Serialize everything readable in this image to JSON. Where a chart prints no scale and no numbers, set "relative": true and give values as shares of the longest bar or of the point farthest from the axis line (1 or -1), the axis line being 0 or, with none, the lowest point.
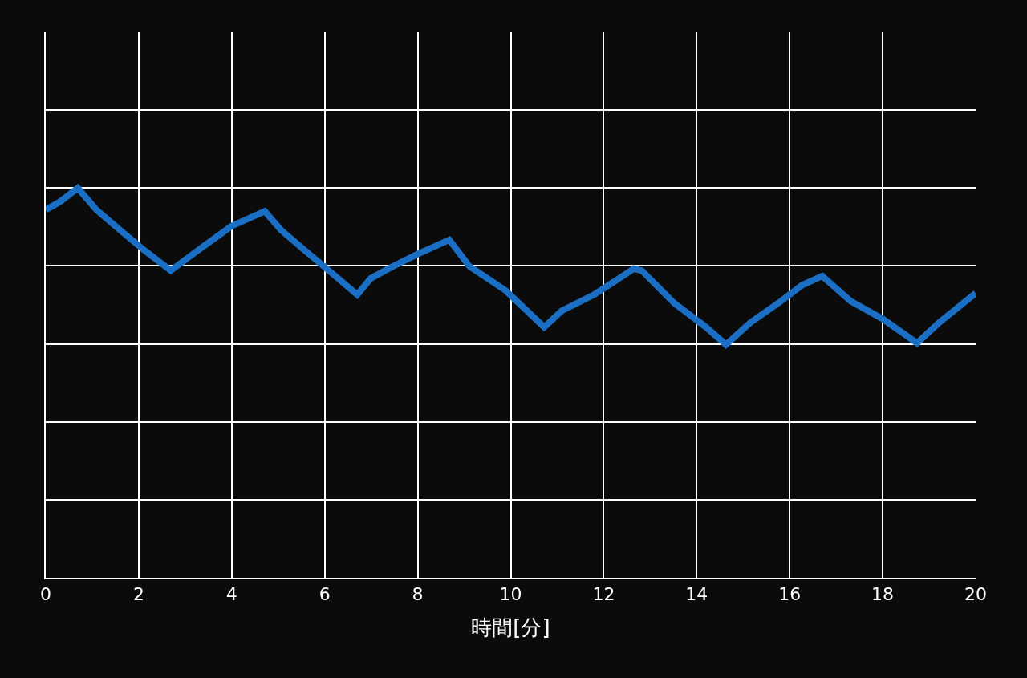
{
  "chart_data": {
    "type": "line",
    "xlabel": "時間[分]",
    "relative": true,
    "xlim": [
      0,
      20
    ],
    "xticks": [
      0,
      2,
      4,
      6,
      8,
      10,
      12,
      14,
      16,
      18,
      20
    ],
    "grid": true,
    "tick_labels": "x",
    "marker": "none",
    "line_style": "solid",
    "series": [
      {
        "color": "#1a6fc4",
        "x": [
          0,
          0.31,
          0.69,
          1.09,
          1.6,
          2.12,
          2.69,
          3.16,
          3.99,
          4.71,
          5.06,
          5.57,
          6.09,
          6.7,
          6.99,
          7.47,
          7.99,
          8.68,
          9.11,
          9.89,
          10.72,
          11.1,
          11.79,
          12.65,
          12.82,
          13.51,
          14.2,
          14.63,
          15.15,
          15.76,
          16.27,
          16.7,
          17.31,
          18.0,
          18.74,
          19.21,
          20.0
        ],
        "values": [
          0.944,
          0.965,
          1.0,
          0.944,
          0.892,
          0.84,
          0.788,
          0.83,
          0.902,
          0.94,
          0.892,
          0.84,
          0.788,
          0.726,
          0.768,
          0.799,
          0.83,
          0.867,
          0.799,
          0.737,
          0.643,
          0.685,
          0.726,
          0.793,
          0.788,
          0.705,
          0.643,
          0.598,
          0.654,
          0.705,
          0.751,
          0.774,
          0.71,
          0.664,
          0.602,
          0.654,
          0.73
        ]
      }
    ]
  }
}
